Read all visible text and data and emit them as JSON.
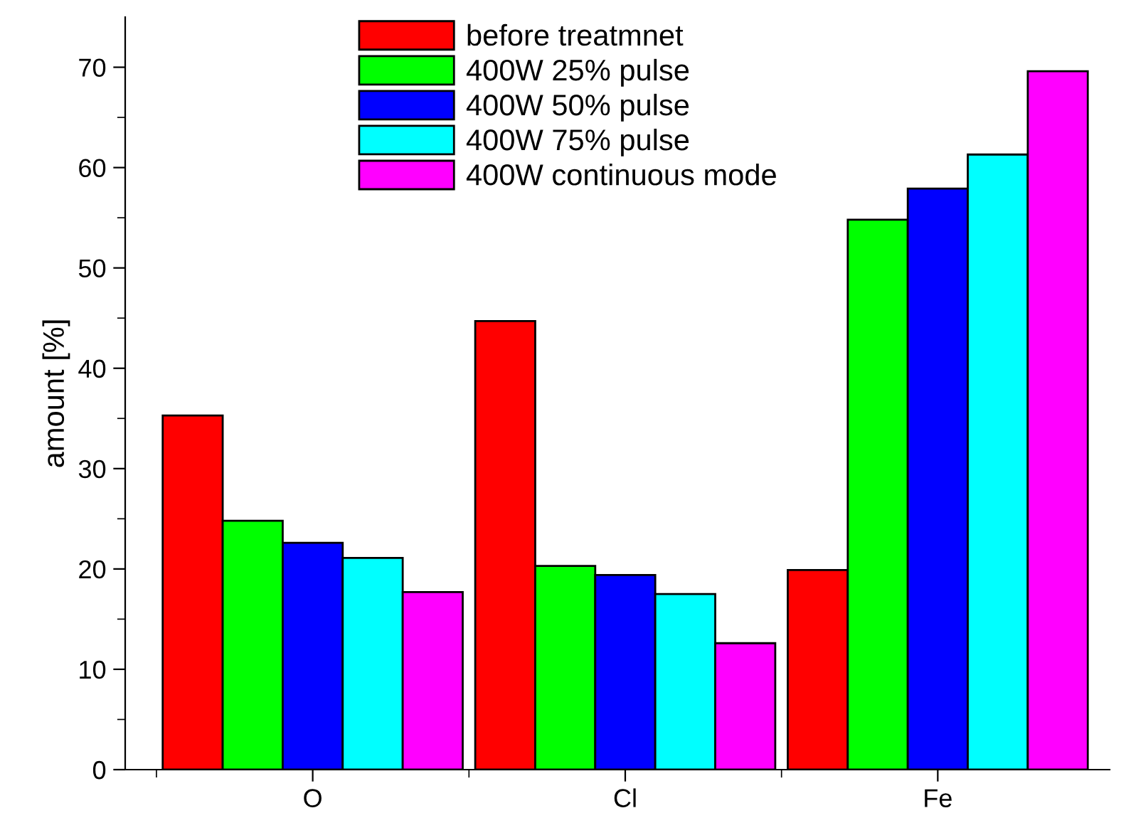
{
  "chart_data": {
    "type": "bar",
    "ylabel": "amount [%]",
    "categories": [
      "O",
      "Cl",
      "Fe"
    ],
    "series": [
      {
        "name": "before treatmnet",
        "color": "#ff0000",
        "values": [
          35.3,
          44.7,
          19.9
        ]
      },
      {
        "name": "400W 25% pulse",
        "color": "#00ff00",
        "values": [
          24.8,
          20.3,
          54.8
        ]
      },
      {
        "name": "400W 50% pulse",
        "color": "#0000ff",
        "values": [
          22.6,
          19.4,
          57.9
        ]
      },
      {
        "name": "400W 75% pulse",
        "color": "#00ffff",
        "values": [
          21.1,
          17.5,
          61.3
        ]
      },
      {
        "name": "400W continuous mode",
        "color": "#ff00ff",
        "values": [
          17.7,
          12.6,
          69.6
        ]
      }
    ],
    "ylim": [
      0,
      75
    ],
    "yticks": [
      0,
      10,
      20,
      30,
      40,
      50,
      60,
      70
    ],
    "grid": false,
    "legend": "top"
  }
}
